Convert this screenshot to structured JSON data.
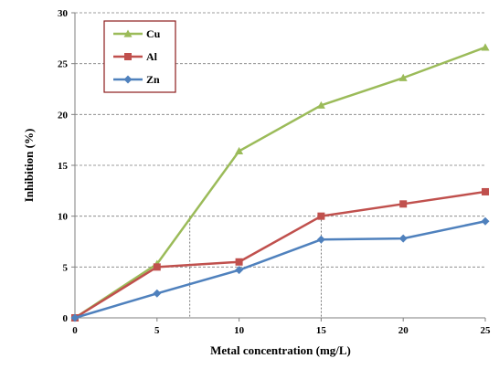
{
  "chart_data": {
    "type": "line",
    "title": "",
    "xlabel": "Metal concentration (mg/L)",
    "ylabel": "Inhibition (%)",
    "x": [
      0,
      5,
      10,
      15,
      20,
      25
    ],
    "xlim": [
      0,
      25
    ],
    "ylim": [
      0,
      30
    ],
    "xticks": [
      "0",
      "5",
      "10",
      "15",
      "20",
      "25"
    ],
    "yticks": [
      "0",
      "5",
      "10",
      "15",
      "20",
      "25",
      "30"
    ],
    "grid": "horizontal dashed",
    "legend_position": "top-left",
    "series": [
      {
        "name": "Cu",
        "color": "#9bbb59",
        "marker": "triangle",
        "values": [
          0,
          5.3,
          16.4,
          20.9,
          23.6,
          26.6
        ]
      },
      {
        "name": "Al",
        "color": "#c0504d",
        "marker": "square",
        "values": [
          0,
          5.0,
          5.5,
          10.0,
          11.2,
          12.4
        ]
      },
      {
        "name": "Zn",
        "color": "#4f81bd",
        "marker": "diamond",
        "values": [
          0,
          2.4,
          4.7,
          7.7,
          7.8,
          9.5
        ]
      }
    ]
  }
}
